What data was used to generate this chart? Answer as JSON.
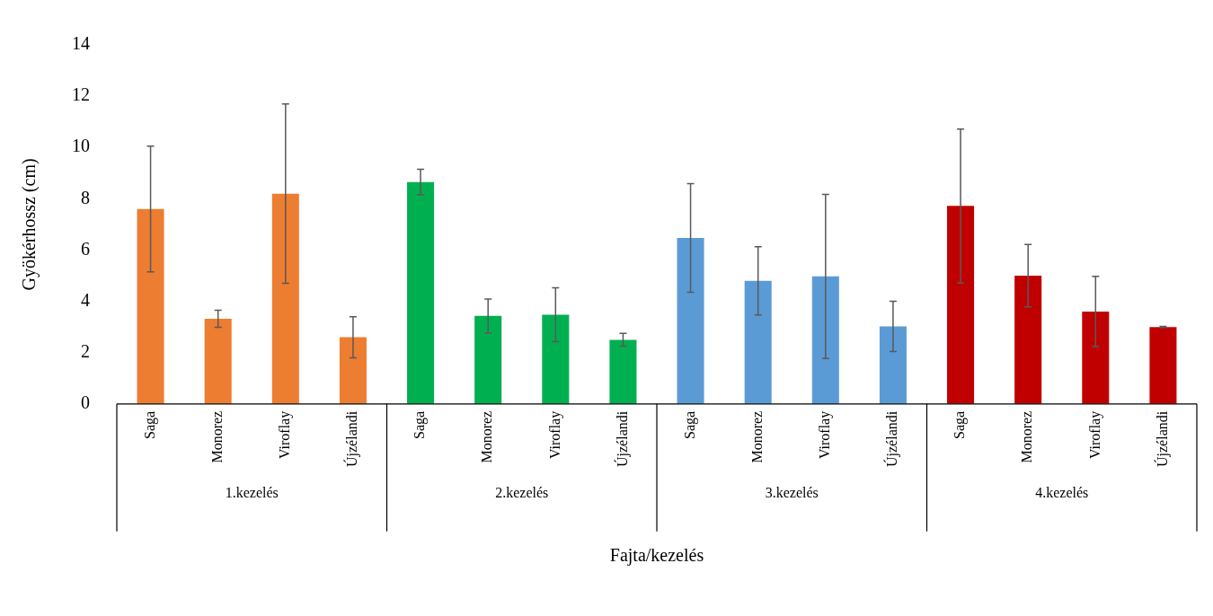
{
  "chart_data": {
    "type": "bar",
    "xlabel": "Fajta/kezelés",
    "ylabel": "Gyökérhossz (cm)",
    "categories": [
      "Saga",
      "Monorez",
      "Viroflay",
      "Újzélandi",
      "Saga",
      "Monorez",
      "Viroflay",
      "Újzélandi",
      "Saga",
      "Monorez",
      "Viroflay",
      "Újzélandi",
      "Saga",
      "Monorez",
      "Viroflay",
      "Újzélandi"
    ],
    "values": [
      7.6,
      3.32,
      8.2,
      2.6,
      8.65,
      3.43,
      3.48,
      2.5,
      6.47,
      4.8,
      4.97,
      3.02,
      7.72,
      5.0,
      3.6,
      3.0
    ],
    "errors": [
      2.45,
      0.33,
      3.5,
      0.8,
      0.5,
      0.66,
      1.05,
      0.25,
      2.12,
      1.33,
      3.2,
      0.98,
      3.0,
      1.22,
      1.37,
      0.02
    ],
    "colors": [
      "#ed7d31",
      "#ed7d31",
      "#ed7d31",
      "#ed7d31",
      "#00b050",
      "#00b050",
      "#00b050",
      "#00b050",
      "#5b9bd5",
      "#5b9bd5",
      "#5b9bd5",
      "#5b9bd5",
      "#c00000",
      "#c00000",
      "#c00000",
      "#c00000"
    ],
    "ylim": [
      0,
      14
    ],
    "yticks": [
      0,
      2,
      4,
      6,
      8,
      10,
      12,
      14
    ],
    "annotations": [
      "1.kezelés",
      "2.kezelés",
      "3.kezelés",
      "4.kezelés"
    ]
  }
}
